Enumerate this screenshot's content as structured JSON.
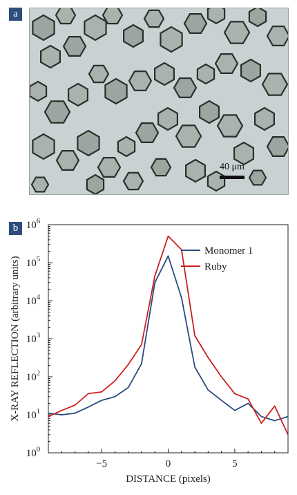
{
  "panel_a": {
    "tag": "a",
    "scale_label": "40 μm"
  },
  "panel_b": {
    "tag": "b"
  },
  "chart_data": {
    "type": "line",
    "xlabel": "DISTANCE (pixels)",
    "ylabel": "X-RAY REFLECTION (arbitrary units)",
    "xlim": [
      -9,
      9
    ],
    "ylim": [
      1,
      1000000
    ],
    "yscale": "log",
    "x_ticks": [
      -5,
      0,
      5
    ],
    "x_tick_labels": [
      "−5",
      "0",
      "5"
    ],
    "y_ticks": [
      1,
      10,
      100,
      1000,
      10000,
      100000,
      1000000
    ],
    "y_tick_labels": [
      {
        "base": "10",
        "exp": "0"
      },
      {
        "base": "10",
        "exp": "1"
      },
      {
        "base": "10",
        "exp": "2"
      },
      {
        "base": "10",
        "exp": "3"
      },
      {
        "base": "10",
        "exp": "4"
      },
      {
        "base": "10",
        "exp": "5"
      },
      {
        "base": "10",
        "exp": "6"
      }
    ],
    "grid": false,
    "legend_position": "top-right",
    "series": [
      {
        "name": "Monomer 1",
        "color": "#2a4a7f",
        "x": [
          -9,
          -8,
          -7,
          -6,
          -5,
          -4,
          -3,
          -2,
          -1,
          0,
          1,
          2,
          3,
          4,
          5,
          6,
          7,
          8,
          9
        ],
        "y": [
          11,
          10,
          11,
          16,
          24,
          30,
          52,
          220,
          30000,
          150000,
          12000,
          180,
          45,
          24,
          13,
          20,
          9,
          7,
          9
        ]
      },
      {
        "name": "Ruby",
        "color": "#cc1f1f",
        "x": [
          -9,
          -8,
          -7,
          -6,
          -5,
          -4,
          -3,
          -2,
          -1,
          0,
          1,
          2,
          3,
          4,
          5,
          6,
          7,
          8,
          9
        ],
        "y": [
          9,
          13,
          18,
          36,
          40,
          78,
          210,
          700,
          45000,
          500000,
          220000,
          1200,
          320,
          100,
          36,
          26,
          6,
          17,
          3
        ]
      }
    ]
  }
}
